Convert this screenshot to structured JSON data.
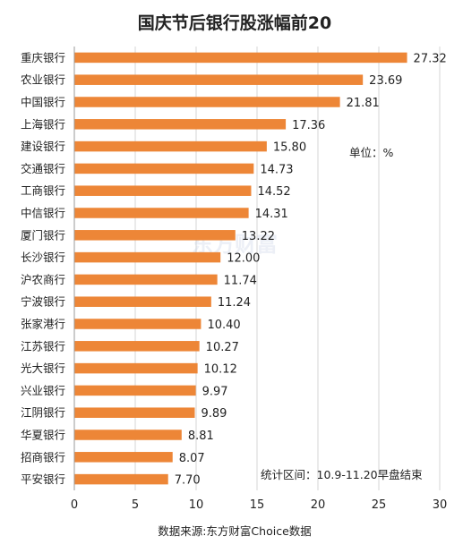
{
  "chart_data": {
    "type": "bar",
    "orientation": "horizontal",
    "title": "国庆节后银行股涨幅前20",
    "categories": [
      "重庆银行",
      "农业银行",
      "中国银行",
      "上海银行",
      "建设银行",
      "交通银行",
      "工商银行",
      "中信银行",
      "厦门银行",
      "长沙银行",
      "沪农商行",
      "宁波银行",
      "张家港行",
      "江苏银行",
      "光大银行",
      "兴业银行",
      "江阴银行",
      "华夏银行",
      "招商银行",
      "平安银行"
    ],
    "values": [
      27.32,
      23.69,
      21.81,
      17.36,
      15.8,
      14.73,
      14.52,
      14.31,
      13.22,
      12.0,
      11.74,
      11.24,
      10.4,
      10.27,
      10.12,
      9.97,
      9.89,
      8.81,
      8.07,
      7.7
    ],
    "value_labels": [
      "27.32",
      "23.69",
      "21.81",
      "17.36",
      "15.80",
      "14.73",
      "14.52",
      "14.31",
      "13.22",
      "12.00",
      "11.74",
      "11.24",
      "10.40",
      "10.27",
      "10.12",
      "9.97",
      "9.89",
      "8.81",
      "8.07",
      "7.70"
    ],
    "xlim": [
      0,
      30
    ],
    "x_ticks": [
      "0",
      "5",
      "10",
      "15",
      "20",
      "25",
      "30"
    ],
    "grid": "vertical",
    "bar_color": "#ed8637",
    "unit_note": "单位：%",
    "period_note": "统计区间：10.9-11.20早盘结束",
    "source": "数据来源:东方财富Choice数据",
    "watermark": "东方财富"
  }
}
